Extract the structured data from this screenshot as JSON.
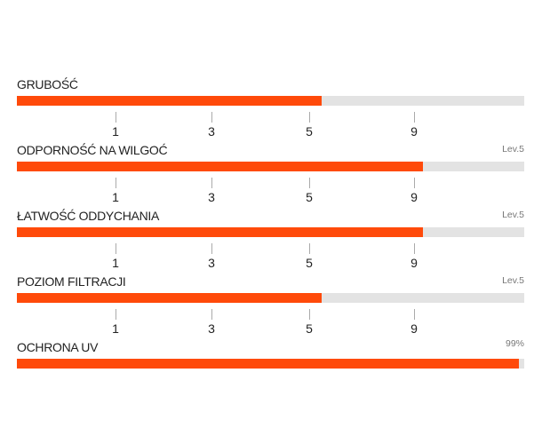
{
  "items": [
    {
      "label": "GRUBOŚĆ",
      "value": 60
    },
    {
      "label": "ODPORNOŚĆ NA WILGOĆ",
      "note": "Lev.5",
      "value": 80
    },
    {
      "label": "ŁATWOŚĆ ODDYCHANIA",
      "note": "Lev.5",
      "value": 80
    },
    {
      "label": "POZIOM FILTRACJI",
      "note": "Lev.5",
      "value": 60
    },
    {
      "label": "OCHRONA UV",
      "value": 99,
      "value_label": "99%"
    }
  ],
  "scale_labels": [
    "1",
    "3",
    "5",
    "9"
  ]
}
